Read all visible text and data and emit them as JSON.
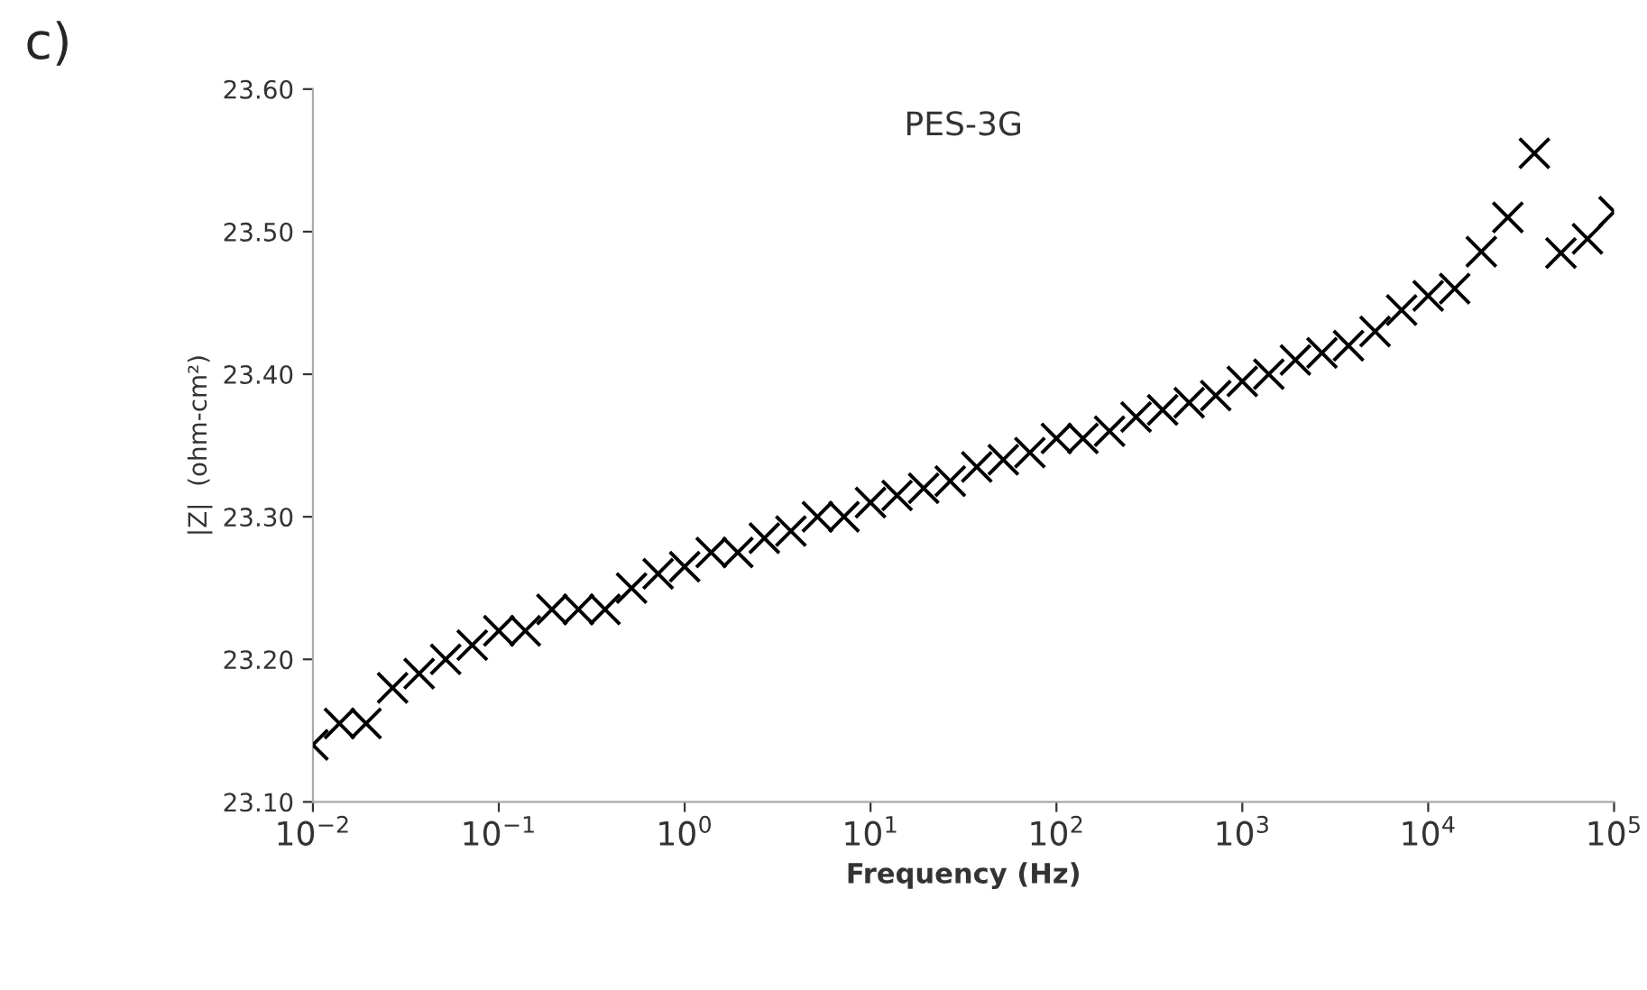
{
  "chart_data": {
    "type": "scatter",
    "title": "PES-3G",
    "xlabel": "Frequency (Hz)",
    "ylabel": "|Z|  (ohm-cm²)",
    "annotations": [
      "c)"
    ],
    "log": "x",
    "marker": "cross",
    "grid": false,
    "xlim": [
      0.01,
      100000
    ],
    "ylim": [
      23.1,
      23.6
    ],
    "xticks": [
      {
        "value": 0.01,
        "label": "10$^{−2}$"
      },
      {
        "value": 0.1,
        "label": "10$^{−1}$"
      },
      {
        "value": 1,
        "label": "10$^{0}$"
      },
      {
        "value": 10,
        "label": "10$^{1}$"
      },
      {
        "value": 100,
        "label": "10$^{2}$"
      },
      {
        "value": 1000,
        "label": "10$^{3}$"
      },
      {
        "value": 10000,
        "label": "10$^{4}$"
      },
      {
        "value": 100000,
        "label": "10$^{5}$"
      }
    ],
    "yticks": [
      {
        "value": 23.1,
        "label": "23.10"
      },
      {
        "value": 23.2,
        "label": "23.20"
      },
      {
        "value": 23.3,
        "label": "23.30"
      },
      {
        "value": 23.4,
        "label": "23.40"
      },
      {
        "value": 23.5,
        "label": "23.50"
      },
      {
        "value": 23.6,
        "label": "23.60"
      }
    ],
    "series": [
      {
        "color": "#000000",
        "x": [
          0.01,
          0.01389,
          0.01931,
          0.02683,
          0.03728,
          0.05179,
          0.07197,
          0.1,
          0.1389,
          0.1931,
          0.2683,
          0.3728,
          0.5179,
          0.7197,
          1,
          1.389,
          1.931,
          2.683,
          3.728,
          5.179,
          7.197,
          10,
          13.89,
          19.31,
          26.83,
          37.28,
          51.79,
          71.97,
          100,
          138.9,
          193.1,
          268.3,
          372.8,
          517.9,
          719.7,
          1000,
          1389,
          1931,
          2683,
          3728,
          5179,
          7197,
          10000,
          13890,
          19310,
          26830,
          37280,
          51790,
          71970,
          100000
        ],
        "values": [
          23.14,
          23.155,
          23.155,
          23.18,
          23.19,
          23.2,
          23.21,
          23.22,
          23.22,
          23.235,
          23.235,
          23.235,
          23.25,
          23.26,
          23.265,
          23.275,
          23.275,
          23.285,
          23.29,
          23.3,
          23.3,
          23.31,
          23.315,
          23.32,
          23.325,
          23.335,
          23.34,
          23.345,
          23.355,
          23.355,
          23.36,
          23.37,
          23.375,
          23.38,
          23.385,
          23.395,
          23.4,
          23.41,
          23.415,
          23.42,
          23.43,
          23.445,
          23.455,
          23.46,
          23.486,
          23.51,
          23.555,
          23.485,
          23.495,
          23.514
        ]
      }
    ]
  }
}
